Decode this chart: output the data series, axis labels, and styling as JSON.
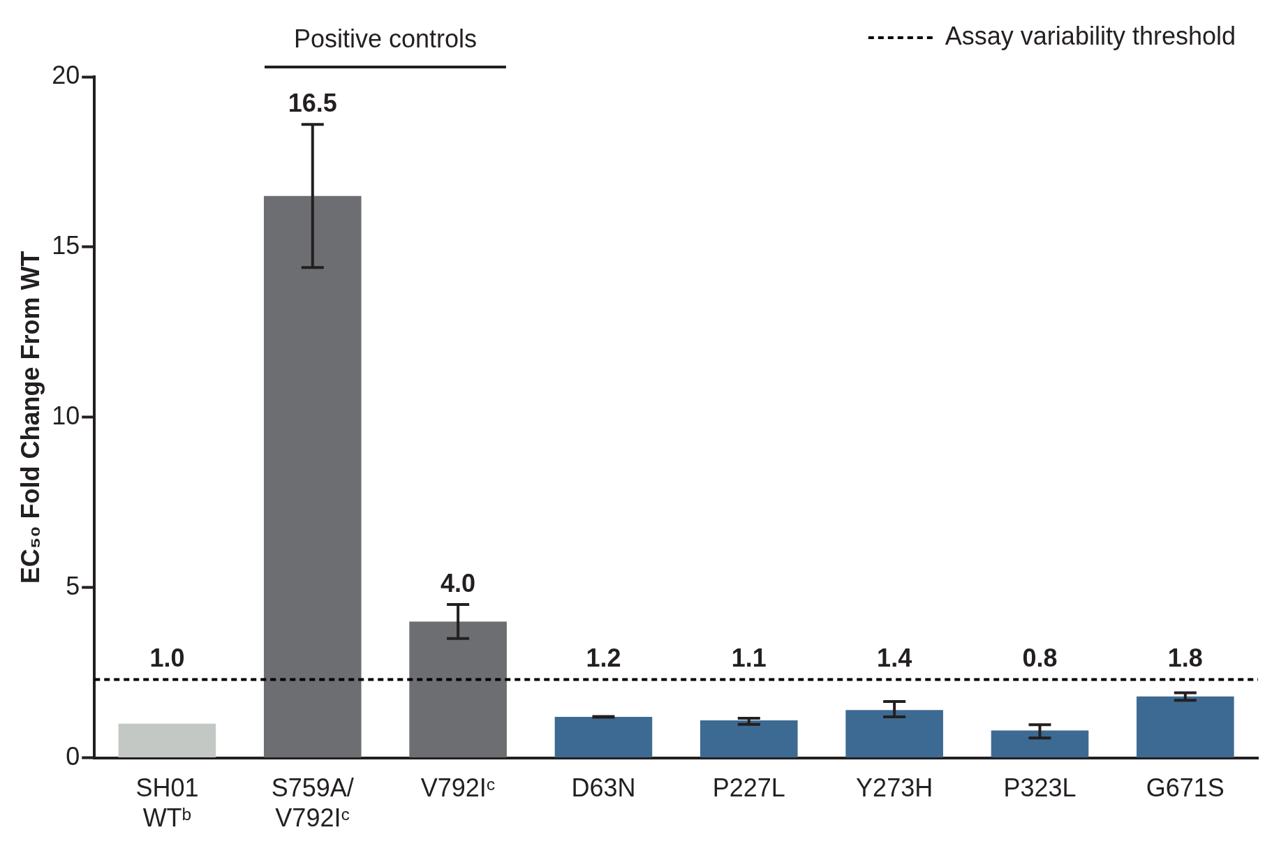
{
  "chart_data": {
    "type": "bar",
    "ylabel": "EC₅₀ Fold Change From WT",
    "categories": [
      "SH01\nWTᵇ",
      "S759A/\nV792Iᶜ",
      "V792Iᶜ",
      "D63N",
      "P227L",
      "Y273H",
      "P323L",
      "G671S"
    ],
    "values": [
      1.0,
      16.5,
      4.0,
      1.2,
      1.1,
      1.4,
      0.8,
      1.8
    ],
    "colors": [
      "#c4c8c4",
      "#6d6e71",
      "#6d6e71",
      "#3d6a92",
      "#3d6a92",
      "#3d6a92",
      "#3d6a92",
      "#3d6a92"
    ],
    "errors": [
      null,
      [
        14.4,
        18.6
      ],
      [
        3.5,
        4.5
      ],
      [
        1.19,
        1.21
      ],
      [
        0.98,
        1.16
      ],
      [
        1.2,
        1.65
      ],
      [
        0.58,
        0.97
      ],
      [
        1.69,
        1.91
      ]
    ],
    "value_labels": [
      "1.0",
      "16.5",
      "4.0",
      "1.2",
      "1.1",
      "1.4",
      "0.8",
      "1.8"
    ],
    "ylim": [
      0,
      20
    ],
    "yticks": [
      0,
      5,
      10,
      15,
      20
    ],
    "grid": false,
    "legend": "top right",
    "ref_lines": [
      {
        "axis": "y",
        "value": 2.3,
        "label": "Assay variability threshold",
        "line_style": "dotted",
        "color": "#000000"
      }
    ],
    "annotations": [
      "Positive controls"
    ]
  }
}
